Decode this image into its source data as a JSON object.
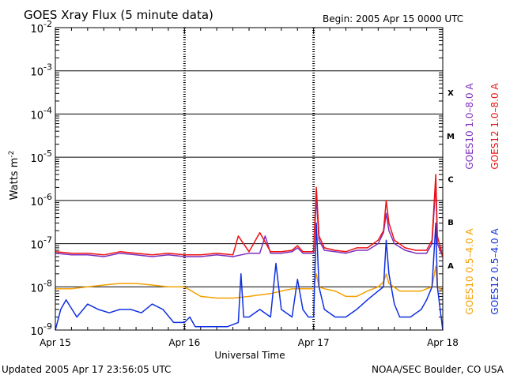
{
  "chart_data": {
    "type": "line",
    "title": "GOES Xray Flux (5 minute data)",
    "begin_label": "Begin:  2005 Apr 15 0000 UTC",
    "xlabel": "Universal Time",
    "ylabel": "Watts m",
    "ylabel_sup": "-2",
    "y_scale": "log",
    "ylim": [
      1e-09,
      0.01
    ],
    "y_ticks": [
      {
        "value": 0.01,
        "base": "10",
        "exp": "-2"
      },
      {
        "value": 0.001,
        "base": "10",
        "exp": "-3"
      },
      {
        "value": 0.0001,
        "base": "10",
        "exp": "-4"
      },
      {
        "value": 1e-05,
        "base": "10",
        "exp": "-5"
      },
      {
        "value": 1e-06,
        "base": "10",
        "exp": "-6"
      },
      {
        "value": 1e-07,
        "base": "10",
        "exp": "-7"
      },
      {
        "value": 1e-08,
        "base": "10",
        "exp": "-8"
      },
      {
        "value": 1e-09,
        "base": "10",
        "exp": "-9"
      }
    ],
    "xlim": [
      0,
      72
    ],
    "x_unit": "hours since 2005 Apr 15 0000 UTC",
    "x_ticks": [
      {
        "value": 0,
        "label": "Apr 15"
      },
      {
        "value": 24,
        "label": "Apr 16"
      },
      {
        "value": 48,
        "label": "Apr 17"
      },
      {
        "value": 72,
        "label": "Apr 18"
      }
    ],
    "flare_classes": [
      {
        "label": "X",
        "value": 0.0001
      },
      {
        "label": "M",
        "value": 1e-05
      },
      {
        "label": "C",
        "value": 1e-06
      },
      {
        "label": "B",
        "value": 1e-07
      },
      {
        "label": "A",
        "value": 1e-08
      }
    ],
    "legend": [
      {
        "label": "GOES10 1.0–8.0 A",
        "color": "#7b2fbe"
      },
      {
        "label": "GOES12 1.0–8.0 A",
        "color": "#ee1111"
      },
      {
        "label": "GOES10 0.5–4.0 A",
        "color": "#f5a000"
      },
      {
        "label": "GOES12 0.5–4.0 A",
        "color": "#1030e0"
      }
    ],
    "series": [
      {
        "name": "GOES10 1.0–8.0 A",
        "color": "#7b2fbe",
        "x": [
          0,
          3,
          6,
          9,
          12,
          15,
          18,
          21,
          24,
          27,
          30,
          33,
          36,
          38,
          39,
          40,
          42,
          44,
          45,
          46,
          47,
          48,
          48.5,
          49,
          50,
          52,
          54,
          56,
          58,
          60,
          61,
          61.5,
          62,
          63,
          65,
          67,
          69,
          70,
          70.7,
          71,
          72
        ],
        "y": [
          6e-08,
          5.5e-08,
          5.5e-08,
          5e-08,
          6e-08,
          5.5e-08,
          5e-08,
          5.5e-08,
          5e-08,
          5e-08,
          5.5e-08,
          5e-08,
          6e-08,
          6e-08,
          1.5e-07,
          6e-08,
          6e-08,
          6.5e-08,
          8e-08,
          6e-08,
          6e-08,
          6e-08,
          1.2e-06,
          1.2e-07,
          7e-08,
          6.5e-08,
          6e-08,
          7e-08,
          7e-08,
          1e-07,
          1.8e-07,
          5e-07,
          2e-07,
          1e-07,
          7e-08,
          6e-08,
          6e-08,
          1e-07,
          2.5e-06,
          1e-07,
          5e-08
        ]
      },
      {
        "name": "GOES12 1.0–8.0 A",
        "color": "#ee1111",
        "x": [
          0,
          3,
          6,
          9,
          12,
          15,
          18,
          21,
          24,
          27,
          30,
          33,
          34,
          36,
          38,
          40,
          42,
          44,
          45,
          46,
          47,
          48,
          48.5,
          49,
          50,
          52,
          54,
          56,
          58,
          60,
          61,
          61.5,
          62,
          63,
          65,
          67,
          69,
          70,
          70.7,
          71,
          72
        ],
        "y": [
          6.5e-08,
          6e-08,
          6e-08,
          5.5e-08,
          6.5e-08,
          6e-08,
          5.5e-08,
          6e-08,
          5.5e-08,
          5.5e-08,
          6e-08,
          5.5e-08,
          1.5e-07,
          6.5e-08,
          1.8e-07,
          6.5e-08,
          6.5e-08,
          7e-08,
          9e-08,
          6.5e-08,
          6.5e-08,
          6.5e-08,
          2e-06,
          1.5e-07,
          8e-08,
          7e-08,
          6.5e-08,
          8e-08,
          8e-08,
          1.2e-07,
          2e-07,
          1e-06,
          3e-07,
          1.2e-07,
          8e-08,
          7e-08,
          7e-08,
          1.2e-07,
          4e-06,
          1.5e-07,
          5e-08
        ]
      },
      {
        "name": "GOES10 0.5–4.0 A",
        "color": "#f5a000",
        "x": [
          0,
          3,
          6,
          9,
          12,
          15,
          18,
          21,
          24,
          27,
          30,
          33,
          36,
          38,
          40,
          42,
          44,
          46,
          48,
          48.5,
          49,
          50,
          52,
          54,
          56,
          58,
          60,
          61,
          61.5,
          62,
          64,
          66,
          68,
          69,
          70,
          70.7,
          71,
          72
        ],
        "y": [
          9e-09,
          9e-09,
          1e-08,
          1.1e-08,
          1.2e-08,
          1.2e-08,
          1.1e-08,
          1e-08,
          1e-08,
          6e-09,
          5.5e-09,
          5.5e-09,
          6e-09,
          6.5e-09,
          7e-09,
          8e-09,
          9e-09,
          9e-09,
          9e-09,
          2e-08,
          1e-08,
          9e-09,
          8e-09,
          6e-09,
          6e-09,
          8e-09,
          1e-08,
          1.3e-08,
          2e-08,
          1.2e-08,
          8e-09,
          8e-09,
          8e-09,
          9e-09,
          1e-08,
          3e-08,
          1e-08,
          8e-09
        ]
      },
      {
        "name": "GOES12 0.5–4.0 A",
        "color": "#1030e0",
        "x": [
          0,
          1,
          2,
          4,
          6,
          8,
          10,
          12,
          14,
          16,
          18,
          20,
          22,
          24,
          25,
          26,
          30,
          32,
          34,
          34.5,
          35,
          36,
          38,
          40,
          41,
          42,
          44,
          45,
          46,
          47,
          48,
          48.5,
          49,
          50,
          52,
          54,
          56,
          58,
          60,
          61,
          61.5,
          62,
          63,
          64,
          66,
          68,
          69,
          70,
          70.7,
          71,
          72
        ],
        "y": [
          1e-09,
          3e-09,
          5e-09,
          2e-09,
          4e-09,
          3e-09,
          2.5e-09,
          3e-09,
          3e-09,
          2.5e-09,
          4e-09,
          3e-09,
          1.5e-09,
          1.5e-09,
          2e-09,
          1.2e-09,
          1.2e-09,
          1.2e-09,
          1.5e-09,
          2e-08,
          2e-09,
          2e-09,
          3e-09,
          2e-09,
          3.5e-08,
          3e-09,
          2e-09,
          1.5e-08,
          3e-09,
          2e-09,
          2e-09,
          3e-07,
          1e-08,
          3e-09,
          2e-09,
          2e-09,
          3e-09,
          5e-09,
          8e-09,
          1e-08,
          1.2e-07,
          2e-08,
          4e-09,
          2e-09,
          2e-09,
          3e-09,
          5e-09,
          1e-08,
          3e-07,
          1e-08,
          1e-09
        ]
      }
    ]
  },
  "footer": {
    "updated": "Updated 2005 Apr 17 23:56:05 UTC",
    "credit": "NOAA/SEC Boulder, CO USA"
  }
}
